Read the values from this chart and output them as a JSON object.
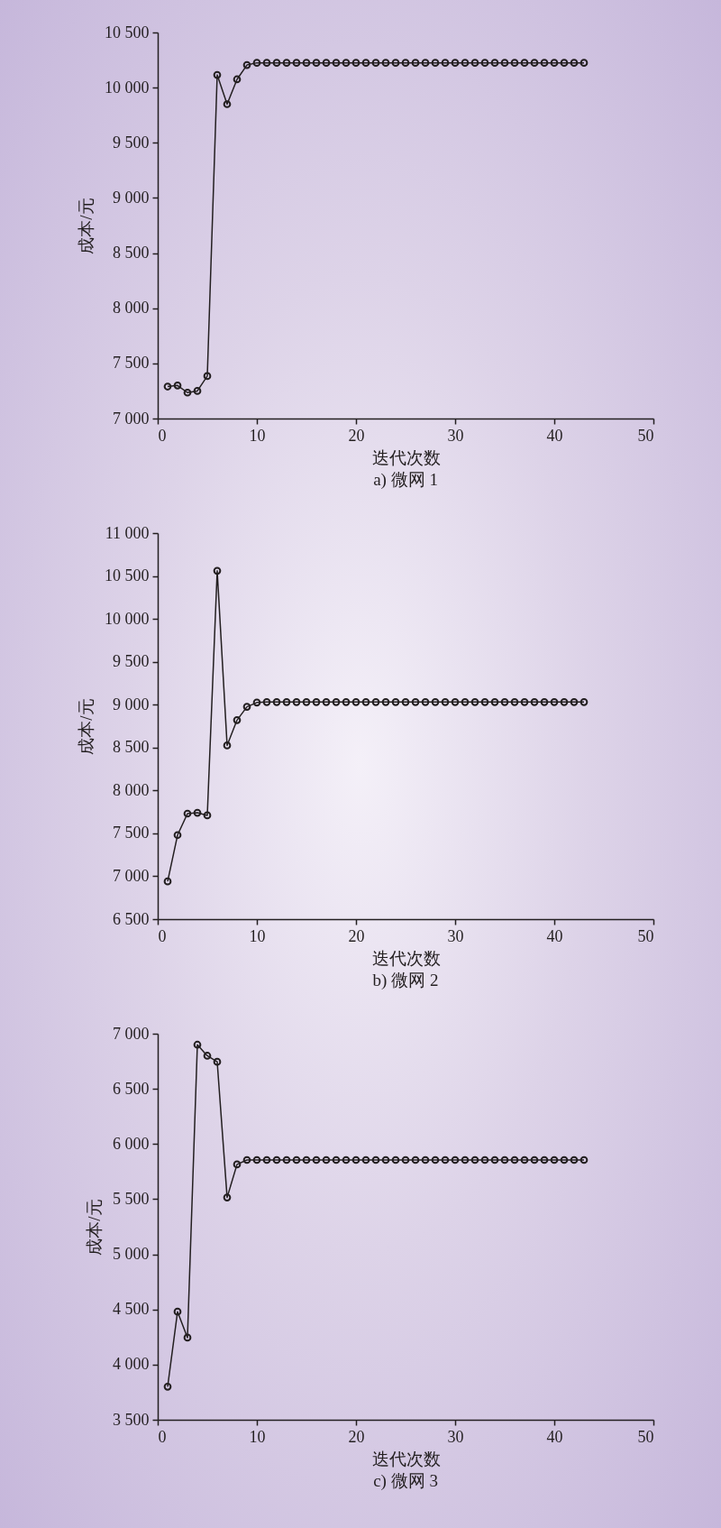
{
  "chart_data": [
    {
      "type": "line",
      "title": "a) 微网 1",
      "xlabel": "迭代次数",
      "ylabel": "成本/元",
      "marker": "circle",
      "line_style": "solid",
      "grid": false,
      "x": [
        1,
        2,
        3,
        4,
        5,
        6,
        7,
        8,
        9,
        10,
        11,
        12,
        13,
        14,
        15,
        16,
        17,
        18,
        19,
        20,
        21,
        22,
        23,
        24,
        25,
        26,
        27,
        28,
        29,
        30,
        31,
        32,
        33,
        34,
        35,
        36,
        37,
        38,
        39,
        40,
        41,
        42,
        43
      ],
      "series": [
        {
          "color": "#231f20",
          "values": [
            7290,
            7300,
            7235,
            7250,
            7385,
            10115,
            9850,
            10075,
            10205,
            10225,
            10225,
            10225,
            10225,
            10225,
            10225,
            10225,
            10225,
            10225,
            10225,
            10225,
            10225,
            10225,
            10225,
            10225,
            10225,
            10225,
            10225,
            10225,
            10225,
            10225,
            10225,
            10225,
            10225,
            10225,
            10225,
            10225,
            10225,
            10225,
            10225,
            10225,
            10225,
            10225,
            10225
          ]
        }
      ],
      "xlim": [
        0,
        50
      ],
      "xticks": [
        0,
        10,
        20,
        30,
        40,
        50
      ],
      "ylim": [
        7000,
        10500
      ],
      "yticks": [
        {
          "value": 7000,
          "label": "7 000"
        },
        {
          "value": 7500,
          "label": "7 500"
        },
        {
          "value": 8000,
          "label": "8 000"
        },
        {
          "value": 8500,
          "label": "8 500"
        },
        {
          "value": 9000,
          "label": "9 000"
        },
        {
          "value": 9500,
          "label": "9 500"
        },
        {
          "value": 10000,
          "label": "10 000"
        },
        {
          "value": 10500,
          "label": "10 500"
        }
      ]
    },
    {
      "type": "line",
      "title": "b) 微网 2",
      "xlabel": "迭代次数",
      "ylabel": "成本/元",
      "marker": "circle",
      "line_style": "solid",
      "grid": false,
      "x": [
        1,
        2,
        3,
        4,
        5,
        6,
        7,
        8,
        9,
        10,
        11,
        12,
        13,
        14,
        15,
        16,
        17,
        18,
        19,
        20,
        21,
        22,
        23,
        24,
        25,
        26,
        27,
        28,
        29,
        30,
        31,
        32,
        33,
        34,
        35,
        36,
        37,
        38,
        39,
        40,
        41,
        42,
        43
      ],
      "series": [
        {
          "color": "#231f20",
          "values": [
            6940,
            7480,
            7730,
            7740,
            7710,
            10560,
            8525,
            8820,
            8975,
            9025,
            9030,
            9030,
            9030,
            9030,
            9030,
            9030,
            9030,
            9030,
            9030,
            9030,
            9030,
            9030,
            9030,
            9030,
            9030,
            9030,
            9030,
            9030,
            9030,
            9030,
            9030,
            9030,
            9030,
            9030,
            9030,
            9030,
            9030,
            9030,
            9030,
            9030,
            9030,
            9030,
            9030
          ]
        }
      ],
      "xlim": [
        0,
        50
      ],
      "xticks": [
        0,
        10,
        20,
        30,
        40,
        50
      ],
      "ylim": [
        6500,
        11000
      ],
      "yticks": [
        {
          "value": 6500,
          "label": "6 500"
        },
        {
          "value": 7000,
          "label": "7 000"
        },
        {
          "value": 7500,
          "label": "7 500"
        },
        {
          "value": 8000,
          "label": "8 000"
        },
        {
          "value": 8500,
          "label": "8 500"
        },
        {
          "value": 9000,
          "label": "9 000"
        },
        {
          "value": 9500,
          "label": "9 500"
        },
        {
          "value": 10000,
          "label": "10 000"
        },
        {
          "value": 10500,
          "label": "10 500"
        },
        {
          "value": 11000,
          "label": "11 000"
        }
      ]
    },
    {
      "type": "line",
      "title": "c) 微网 3",
      "xlabel": "迭代次数",
      "ylabel": "成本/元",
      "marker": "circle",
      "line_style": "solid",
      "grid": false,
      "x": [
        1,
        2,
        3,
        4,
        5,
        6,
        7,
        8,
        9,
        10,
        11,
        12,
        13,
        14,
        15,
        16,
        17,
        18,
        19,
        20,
        21,
        22,
        23,
        24,
        25,
        26,
        27,
        28,
        29,
        30,
        31,
        32,
        33,
        34,
        35,
        36,
        37,
        38,
        39,
        40,
        41,
        42,
        43
      ],
      "series": [
        {
          "color": "#231f20",
          "values": [
            3800,
            4480,
            4245,
            6900,
            6800,
            6745,
            5515,
            5815,
            5855,
            5855,
            5855,
            5855,
            5855,
            5855,
            5855,
            5855,
            5855,
            5855,
            5855,
            5855,
            5855,
            5855,
            5855,
            5855,
            5855,
            5855,
            5855,
            5855,
            5855,
            5855,
            5855,
            5855,
            5855,
            5855,
            5855,
            5855,
            5855,
            5855,
            5855,
            5855,
            5855,
            5855,
            5855
          ]
        }
      ],
      "xlim": [
        0,
        50
      ],
      "xticks": [
        0,
        10,
        20,
        30,
        40,
        50
      ],
      "ylim": [
        3500,
        7000
      ],
      "yticks": [
        {
          "value": 3500,
          "label": "3 500"
        },
        {
          "value": 4000,
          "label": "4 000"
        },
        {
          "value": 4500,
          "label": "4 500"
        },
        {
          "value": 5000,
          "label": "5 000"
        },
        {
          "value": 5500,
          "label": "5 500"
        },
        {
          "value": 6000,
          "label": "6 000"
        },
        {
          "value": 6500,
          "label": "6 500"
        },
        {
          "value": 7000,
          "label": "7 000"
        }
      ]
    }
  ]
}
